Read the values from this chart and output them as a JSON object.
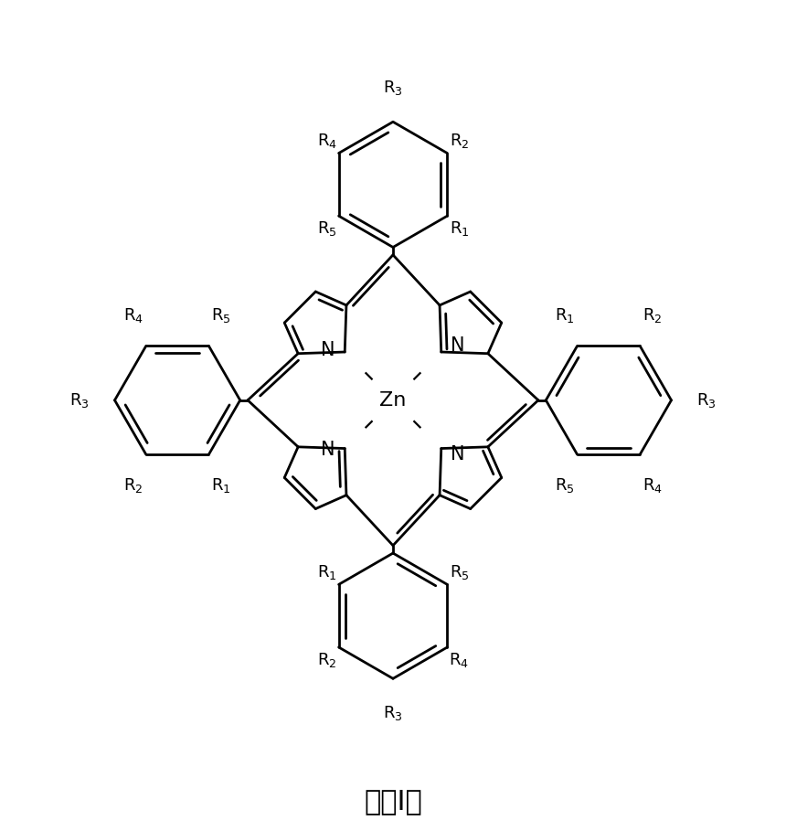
{
  "title": "式（Ⅰ）",
  "title_fontsize": 22,
  "background_color": "#ffffff",
  "line_color": "#000000",
  "line_width": 2.0,
  "figsize": [
    8.6,
    9.09
  ],
  "dpi": 100,
  "top_phenyl_labels": [
    "R₁",
    "R₂",
    "R₃",
    "R₄",
    "R₅"
  ],
  "right_phenyl_labels": [
    "R₁",
    "R₂",
    "R₃",
    "R₄",
    "R₅"
  ],
  "bottom_phenyl_labels": [
    "R₅",
    "R₁",
    "R₄",
    "R₂",
    "R₃"
  ],
  "left_phenyl_labels": [
    "R₅",
    "R₄",
    "R₃",
    "R₂",
    "R₁"
  ]
}
